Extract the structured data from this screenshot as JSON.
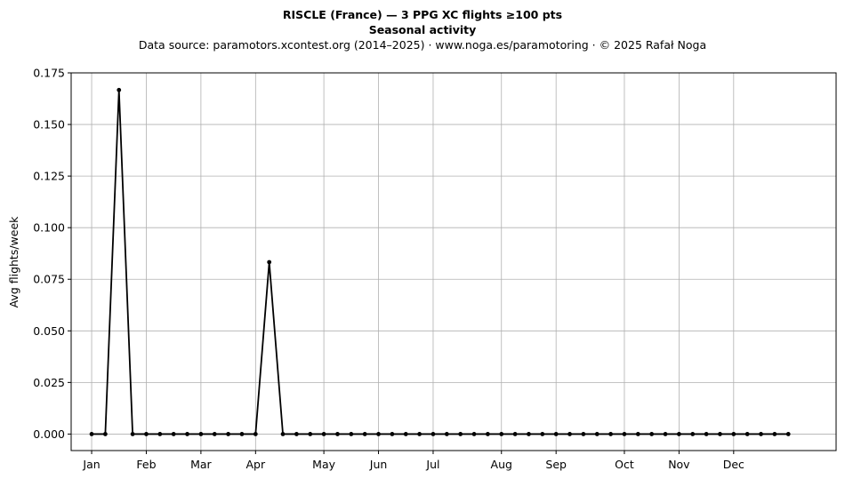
{
  "chart_data": {
    "type": "line",
    "title": "RISCLE (France)  —  3 PPG XC flights ≥100 pts",
    "subtitle": "Seasonal activity",
    "source_line": "Data source: paramotors.xcontest.org (2014–2025)  ·  www.noga.es/paramotoring  ·  © 2025 Rafał Noga",
    "xlabel": "",
    "ylabel": "Avg flights/week",
    "ylim": [
      -0.008,
      0.175
    ],
    "xlim": [
      -1.5,
      54.5
    ],
    "grid": true,
    "yticks": [
      0.0,
      0.025,
      0.05,
      0.075,
      0.1,
      0.125,
      0.15,
      0.175
    ],
    "ytick_labels": [
      "0.000",
      "0.025",
      "0.050",
      "0.075",
      "0.100",
      "0.125",
      "0.150",
      "0.175"
    ],
    "xticks": [
      0,
      4,
      8,
      12,
      17,
      21,
      25,
      30,
      34,
      39,
      43,
      47
    ],
    "xtick_labels": [
      "Jan",
      "Feb",
      "Mar",
      "Apr",
      "May",
      "Jun",
      "Jul",
      "Aug",
      "Sep",
      "Oct",
      "Nov",
      "Dec"
    ],
    "series": [
      {
        "color": "#000000",
        "x": [
          0,
          1,
          2,
          3,
          4,
          5,
          6,
          7,
          8,
          9,
          10,
          11,
          12,
          13,
          14,
          15,
          16,
          17,
          18,
          19,
          20,
          21,
          22,
          23,
          24,
          25,
          26,
          27,
          28,
          29,
          30,
          31,
          32,
          33,
          34,
          35,
          36,
          37,
          38,
          39,
          40,
          41,
          42,
          43,
          44,
          45,
          46,
          47,
          48,
          49,
          50,
          51
        ],
        "values": [
          0,
          0,
          0.1667,
          0,
          0,
          0,
          0,
          0,
          0,
          0,
          0,
          0,
          0,
          0.0833,
          0,
          0,
          0,
          0,
          0,
          0,
          0,
          0,
          0,
          0,
          0,
          0,
          0,
          0,
          0,
          0,
          0,
          0,
          0,
          0,
          0,
          0,
          0,
          0,
          0,
          0,
          0,
          0,
          0,
          0,
          0,
          0,
          0,
          0,
          0,
          0,
          0,
          0
        ]
      }
    ]
  }
}
